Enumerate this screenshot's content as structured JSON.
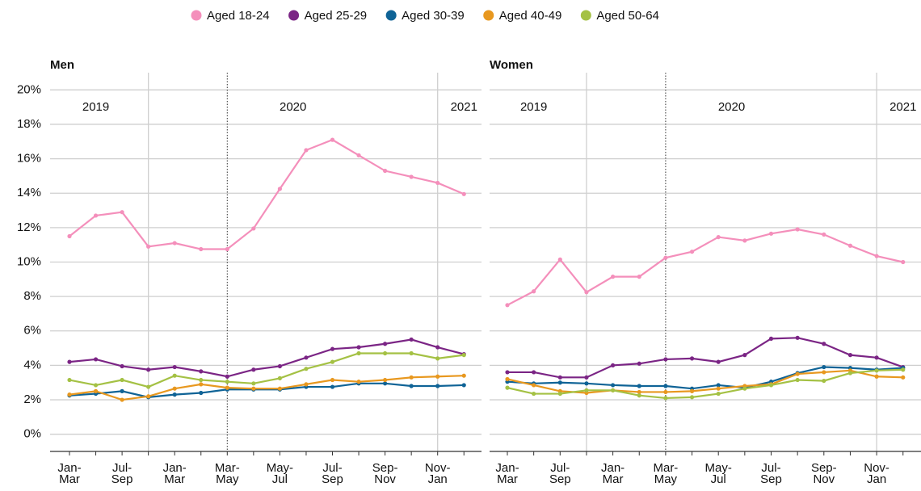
{
  "chart_data": {
    "type": "line",
    "categories": [
      "Jan-\nMar",
      null,
      "Jul-\nSep",
      null,
      "Jan-\nMar",
      null,
      "Mar-\nMay",
      null,
      "May-\nJul",
      null,
      "Jul-\nSep",
      null,
      "Sep-\nNov",
      null,
      "Nov-\nJan",
      null
    ],
    "annotations": [
      "2019",
      "2020",
      "2021"
    ],
    "ylim": [
      -1,
      21
    ],
    "yticks": [
      {
        "value": 0,
        "label": "0%"
      },
      {
        "value": 2,
        "label": "2%"
      },
      {
        "value": 4,
        "label": "4%"
      },
      {
        "value": 6,
        "label": "6%"
      },
      {
        "value": 8,
        "label": "8%"
      },
      {
        "value": 10,
        "label": "10%"
      },
      {
        "value": 12,
        "label": "12%"
      },
      {
        "value": 14,
        "label": "14%"
      },
      {
        "value": 16,
        "label": "16%"
      },
      {
        "value": 18,
        "label": "18%"
      },
      {
        "value": 20,
        "label": "20%"
      }
    ],
    "grid": true,
    "series": [
      {
        "name": "Aged 18-24",
        "color": "#f48fbb"
      },
      {
        "name": "Aged 25-29",
        "color": "#7b2585"
      },
      {
        "name": "Aged 30-39",
        "color": "#0f6396"
      },
      {
        "name": "Aged 40-49",
        "color": "#e8981f"
      },
      {
        "name": "Aged 50-64",
        "color": "#a4c144"
      }
    ],
    "panels": [
      {
        "title": "Men",
        "values": [
          [
            11.5,
            12.7,
            12.9,
            10.9,
            11.1,
            10.75,
            10.75,
            11.95,
            14.25,
            16.5,
            17.1,
            16.2,
            15.3,
            14.95,
            14.6,
            13.95
          ],
          [
            4.2,
            4.35,
            3.95,
            3.75,
            3.9,
            3.65,
            3.35,
            3.75,
            3.95,
            4.45,
            4.95,
            5.05,
            5.25,
            5.5,
            5.05,
            4.65
          ],
          [
            2.25,
            2.35,
            2.5,
            2.15,
            2.3,
            2.4,
            2.6,
            2.6,
            2.6,
            2.75,
            2.75,
            2.95,
            2.95,
            2.8,
            2.8,
            2.85
          ],
          [
            2.3,
            2.5,
            2.0,
            2.2,
            2.65,
            2.9,
            2.7,
            2.65,
            2.65,
            2.9,
            3.15,
            3.05,
            3.15,
            3.3,
            3.35,
            3.4
          ],
          [
            3.15,
            2.85,
            3.15,
            2.75,
            3.4,
            3.15,
            3.05,
            2.95,
            3.25,
            3.8,
            4.2,
            4.7,
            4.7,
            4.7,
            4.4,
            4.6
          ]
        ]
      },
      {
        "title": "Women",
        "values": [
          [
            7.5,
            8.3,
            10.15,
            8.25,
            9.15,
            9.15,
            10.25,
            10.6,
            11.45,
            11.25,
            11.65,
            11.9,
            11.6,
            10.95,
            10.35,
            10.0
          ],
          [
            3.6,
            3.6,
            3.3,
            3.3,
            4.0,
            4.1,
            4.35,
            4.4,
            4.2,
            4.6,
            5.55,
            5.6,
            5.25,
            4.6,
            4.45,
            3.9
          ],
          [
            3.05,
            2.95,
            3.0,
            2.95,
            2.85,
            2.8,
            2.8,
            2.65,
            2.85,
            2.7,
            3.05,
            3.55,
            3.9,
            3.85,
            3.75,
            3.85
          ],
          [
            3.2,
            2.85,
            2.5,
            2.4,
            2.55,
            2.45,
            2.45,
            2.5,
            2.65,
            2.8,
            2.9,
            3.5,
            3.6,
            3.7,
            3.35,
            3.3
          ],
          [
            2.7,
            2.35,
            2.35,
            2.55,
            2.55,
            2.25,
            2.1,
            2.15,
            2.35,
            2.65,
            2.85,
            3.15,
            3.1,
            3.55,
            3.7,
            3.75
          ]
        ]
      }
    ]
  }
}
